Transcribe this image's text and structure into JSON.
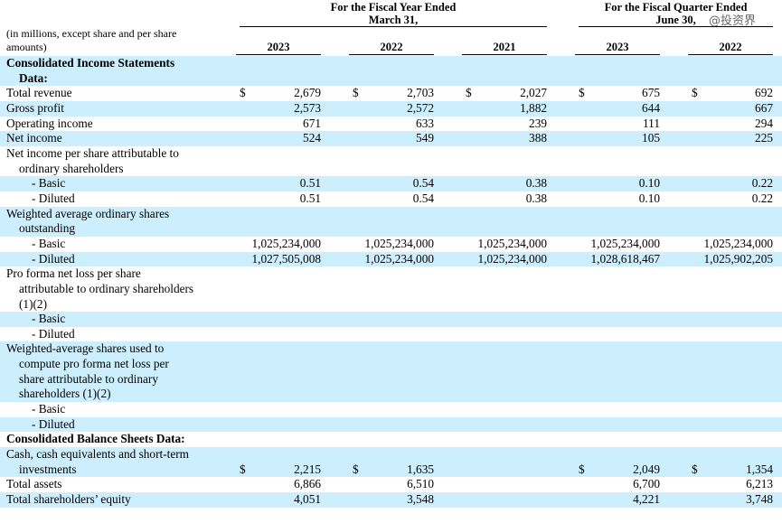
{
  "watermark": "@投资界",
  "header": {
    "unit_note": "(in millions, except share and per share amounts)",
    "groups": [
      {
        "title": [
          "For the Fiscal Year Ended",
          "March 31,"
        ]
      },
      {
        "title": [
          "For the Fiscal Quarter Ended",
          "June 30,"
        ]
      }
    ],
    "years": [
      "2023",
      "2022",
      "2021",
      "2023",
      "2022"
    ]
  },
  "sections": [
    {
      "title": [
        "Consolidated Income Statements",
        "Data:"
      ],
      "rows": [
        {
          "label": [
            "Total revenue"
          ],
          "currency": [
            "$",
            "$",
            "$",
            "$",
            "$"
          ],
          "values": [
            "2,679",
            "2,703",
            "2,027",
            "675",
            "692"
          ]
        },
        {
          "label": [
            "Gross profit"
          ],
          "values": [
            "2,573",
            "2,572",
            "1,882",
            "644",
            "667"
          ]
        },
        {
          "label": [
            "Operating income"
          ],
          "values": [
            "671",
            "633",
            "239",
            "111",
            "294"
          ]
        },
        {
          "label": [
            "Net income"
          ],
          "values": [
            "524",
            "549",
            "388",
            "105",
            "225"
          ]
        },
        {
          "label": [
            "Net income per share attributable to",
            "ordinary shareholders"
          ],
          "items": [
            {
              "label": [
                "- Basic"
              ],
              "values": [
                "0.51",
                "0.54",
                "0.38",
                "0.10",
                "0.22"
              ]
            },
            {
              "label": [
                "- Diluted"
              ],
              "values": [
                "0.51",
                "0.54",
                "0.38",
                "0.10",
                "0.22"
              ]
            }
          ]
        },
        {
          "label": [
            "Weighted average ordinary shares",
            "outstanding"
          ],
          "items": [
            {
              "label": [
                "- Basic"
              ],
              "values": [
                "1,025,234,000",
                "1,025,234,000",
                "1,025,234,000",
                "1,025,234,000",
                "1,025,234,000"
              ]
            },
            {
              "label": [
                "- Diluted"
              ],
              "values": [
                "1,027,505,008",
                "1,025,234,000",
                "1,025,234,000",
                "1,028,618,467",
                "1,025,902,205"
              ]
            }
          ]
        },
        {
          "label": [
            "Pro forma net loss per share",
            "attributable to ordinary shareholders",
            "(1)(2)"
          ],
          "items": [
            {
              "label": [
                "- Basic"
              ]
            },
            {
              "label": [
                "- Diluted"
              ]
            }
          ]
        },
        {
          "label": [
            "Weighted-average shares used to",
            "compute pro forma net loss per",
            "share attributable to ordinary",
            "shareholders (1)(2)"
          ],
          "items": [
            {
              "label": [
                "- Basic"
              ]
            },
            {
              "label": [
                "- Diluted"
              ]
            }
          ]
        }
      ]
    },
    {
      "title": [
        "Consolidated Balance Sheets Data:"
      ],
      "rows": [
        {
          "label": [
            "Cash, cash equivalents and short-term",
            "investments"
          ],
          "currency": [
            "$",
            "$",
            null,
            "$",
            "$"
          ],
          "values": [
            "2,215",
            "1,635",
            null,
            "2,049",
            "1,354"
          ]
        },
        {
          "label": [
            "Total assets"
          ],
          "values": [
            "6,866",
            "6,510",
            null,
            "6,700",
            "6,213"
          ]
        },
        {
          "label": [
            "Total shareholders’ equity"
          ],
          "values": [
            "4,051",
            "3,548",
            null,
            "4,221",
            "3,748"
          ]
        }
      ]
    }
  ]
}
